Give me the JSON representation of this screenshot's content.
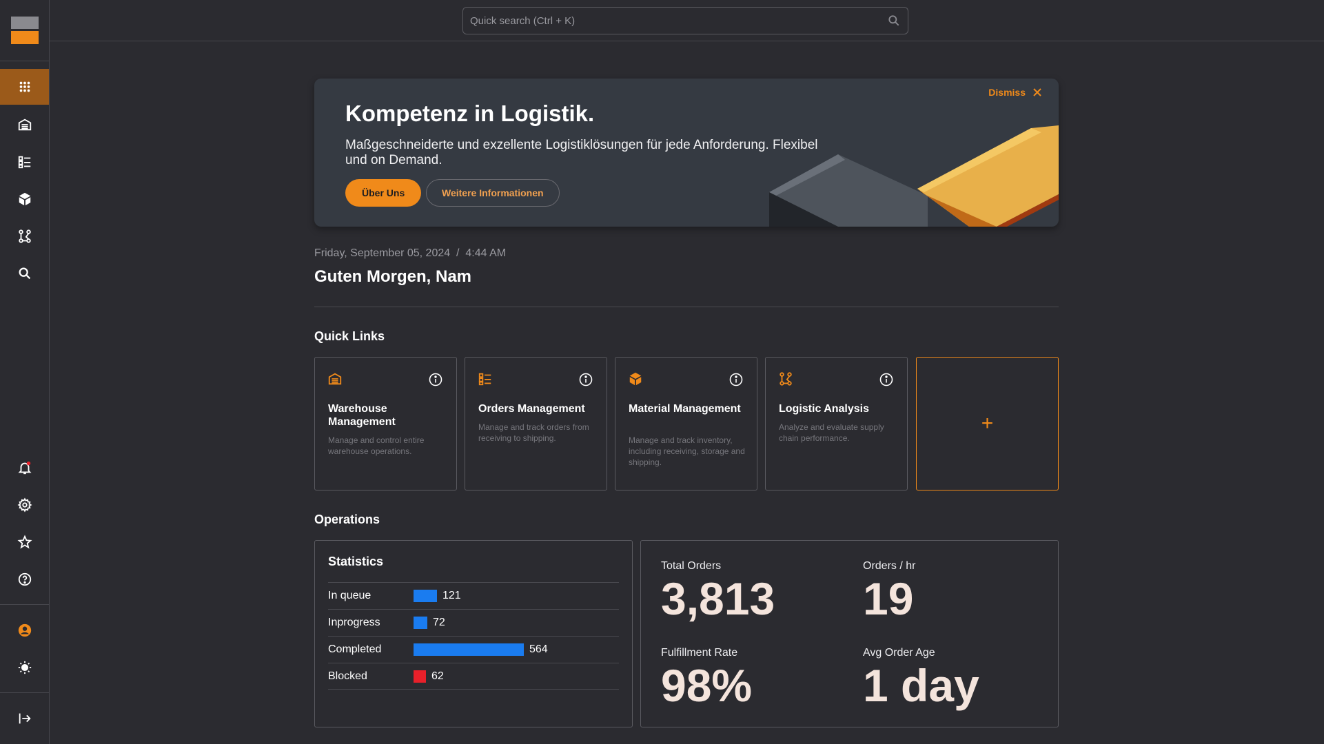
{
  "colors": {
    "accent": "#f08a1a",
    "bar_blue": "#1a7cf0",
    "bar_red": "#e8202a",
    "active_nav": "#9b5a1a"
  },
  "search": {
    "placeholder": "Quick search (Ctrl + K)",
    "icon": "search-icon"
  },
  "sidebar": {
    "top_items": [
      {
        "icon": "grid-icon",
        "active": true
      },
      {
        "icon": "warehouse-icon"
      },
      {
        "icon": "orders-list-icon"
      },
      {
        "icon": "box-icon"
      },
      {
        "icon": "flow-icon"
      },
      {
        "icon": "search-icon"
      }
    ],
    "bottom_items": [
      {
        "icon": "bell-icon"
      },
      {
        "icon": "gear-icon"
      },
      {
        "icon": "star-icon"
      },
      {
        "icon": "help-icon"
      },
      {
        "icon": "user-icon"
      },
      {
        "icon": "sun-icon"
      },
      {
        "icon": "logout-icon"
      }
    ]
  },
  "banner": {
    "title": "Kompetenz in Logistik.",
    "text": "Maßgeschneiderte und exzellente Logistiklösungen für jede Anforderung. Flexibel und on Demand.",
    "primary_label": "Über Uns",
    "secondary_label": "Weitere Informationen",
    "dismiss_label": "Dismiss"
  },
  "header": {
    "date": "Friday, September 05, 2024  /  4:44 AM",
    "greeting": "Guten Morgen, Nam"
  },
  "quick_links": {
    "title": "Quick Links",
    "cards": [
      {
        "icon": "warehouse-icon",
        "title": "Warehouse Management",
        "desc": "Manage and control entire warehouse operations."
      },
      {
        "icon": "orders-list-icon",
        "title": "Orders Management",
        "desc": "Manage and track orders from receiving to shipping."
      },
      {
        "icon": "box-icon",
        "title": "Material Management",
        "desc": "Manage and track inventory, including receiving, storage and shipping."
      },
      {
        "icon": "flow-icon",
        "title": "Logistic Analysis",
        "desc": "Analyze and evaluate supply chain performance."
      }
    ],
    "add_label": "+"
  },
  "operations": {
    "title": "Operations",
    "statistics": {
      "title": "Statistics",
      "max": 564,
      "rows": [
        {
          "label": "In queue",
          "value": 121,
          "color": "#1a7cf0"
        },
        {
          "label": "Inprogress",
          "value": 72,
          "color": "#1a7cf0"
        },
        {
          "label": "Completed",
          "value": 564,
          "color": "#1a7cf0"
        },
        {
          "label": "Blocked",
          "value": 62,
          "color": "#e8202a"
        }
      ]
    },
    "kpis": {
      "total_orders_label": "Total Orders",
      "total_orders_value": "3,813",
      "orders_hr_label": "Orders / hr",
      "orders_hr_value": "19",
      "fulfillment_label": "Fulfillment Rate",
      "fulfillment_value": "98%",
      "avg_age_label": "Avg Order Age",
      "avg_age_value": "1 day"
    }
  }
}
